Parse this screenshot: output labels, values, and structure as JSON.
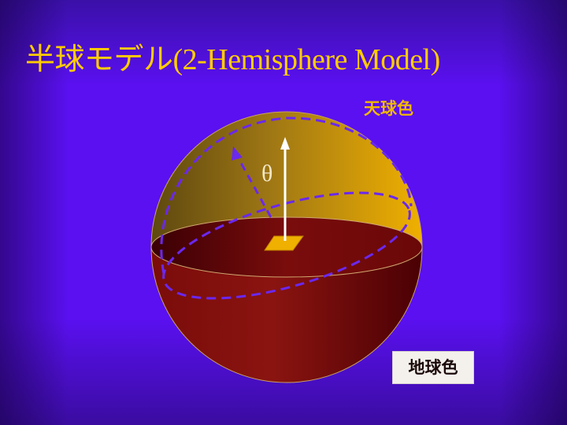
{
  "title": "半球モデル(2-Hemisphere Model)",
  "sky_label": "天球色",
  "ground_label": "地球色",
  "angle_label": "θ",
  "colors": {
    "background": "#5a10f0",
    "title": "#ffcc00",
    "sky_dark": "#6a5010",
    "sky_light": "#f0b000",
    "ground_dark": "#4a0004",
    "ground_light": "#8a1410",
    "dashed_lines": "#6a28f0",
    "arrow": "#ffffff",
    "surface_patch": "#f0b000"
  }
}
